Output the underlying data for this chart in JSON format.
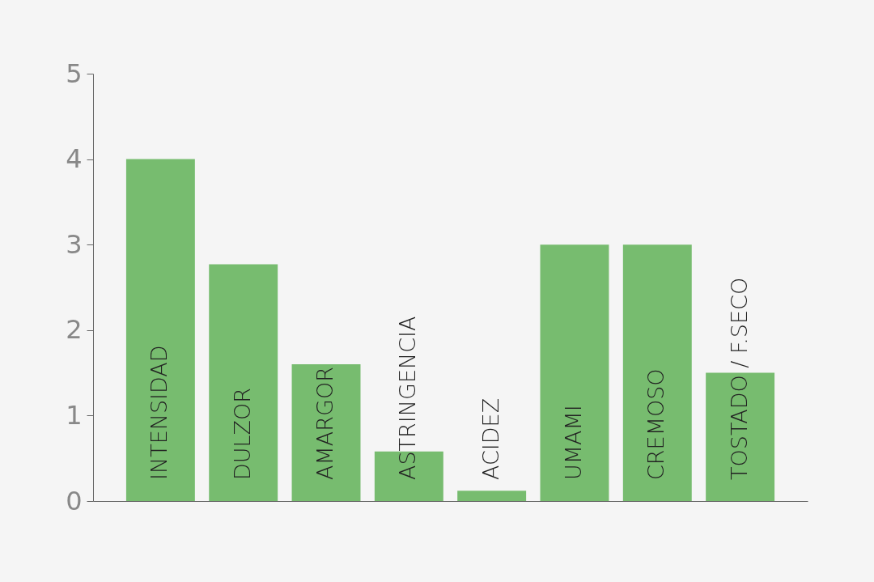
{
  "chart_data": {
    "type": "bar",
    "categories": [
      "INTENSIDAD",
      "DULZOR",
      "AMARGOR",
      "ASTRINGENCIA",
      "ACIDEZ",
      "UMAMI",
      "CREMOSO",
      "TOSTADO / F.SECO"
    ],
    "values": [
      4,
      2.77,
      1.6,
      0.58,
      0.12,
      3,
      3,
      1.5
    ],
    "color": "#77bc6f",
    "ylim": [
      0,
      5
    ],
    "yticks": [
      0,
      1,
      2,
      3,
      4,
      5
    ],
    "grid": false
  }
}
